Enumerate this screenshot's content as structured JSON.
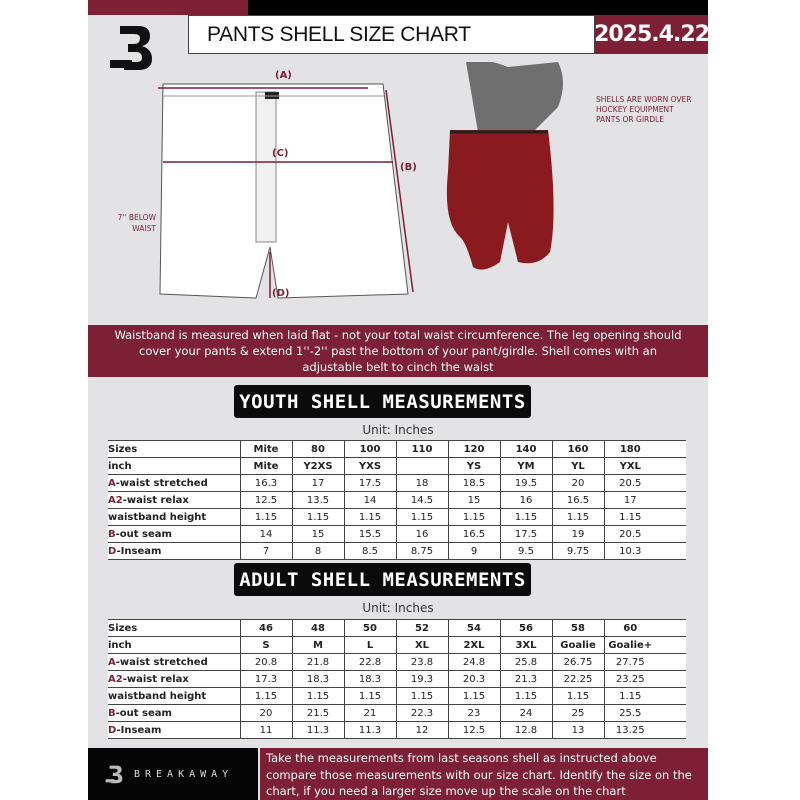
{
  "header": {
    "title": "PANTS SHELL SIZE CHART",
    "date": "2025.4.22"
  },
  "diagram": {
    "label_a": "(A)",
    "label_b": "(B)",
    "label_c": "(C)",
    "label_d": "(D)",
    "below_waist": "7'' BELOW WAIST",
    "worn_note": "SHELLS ARE WORN OVER HOCKEY EQUIPMENT PANTS OR GIRDLE"
  },
  "banner": "Waistband is measured when laid flat - not your total waist circumference. The leg opening should cover your pants & extend 1''-2'' past the bottom of your pant/girdle. Shell comes with an adjustable belt to cinch the waist",
  "youth": {
    "heading": "YOUTH SHELL MEASUREMENTS",
    "unit": "Unit: Inches",
    "rows": [
      {
        "pre": "",
        "label": "Sizes",
        "cells": [
          "Mite",
          "80",
          "100",
          "110",
          "120",
          "140",
          "160",
          "180"
        ]
      },
      {
        "pre": "",
        "label": "inch",
        "cells": [
          "Mite",
          "Y2XS",
          "YXS",
          "",
          "YS",
          "YM",
          "YL",
          "YXL"
        ]
      },
      {
        "pre": "A",
        "label": "-waist stretched",
        "cells": [
          "16.3",
          "17",
          "17.5",
          "18",
          "18.5",
          "19.5",
          "20",
          "20.5"
        ]
      },
      {
        "pre": "A2",
        "label": "-waist relax",
        "cells": [
          "12.5",
          "13.5",
          "14",
          "14.5",
          "15",
          "16",
          "16.5",
          "17"
        ]
      },
      {
        "pre": "",
        "label": "waistband height",
        "cells": [
          "1.15",
          "1.15",
          "1.15",
          "1.15",
          "1.15",
          "1.15",
          "1.15",
          "1.15"
        ]
      },
      {
        "pre": "B",
        "label": "-out seam",
        "cells": [
          "14",
          "15",
          "15.5",
          "16",
          "16.5",
          "17.5",
          "19",
          "20.5"
        ]
      },
      {
        "pre": "D",
        "label": "-Inseam",
        "cells": [
          "7",
          "8",
          "8.5",
          "8.75",
          "9",
          "9.5",
          "9.75",
          "10.3"
        ]
      }
    ]
  },
  "adult": {
    "heading": "ADULT SHELL MEASUREMENTS",
    "unit": "Unit: Inches",
    "rows": [
      {
        "pre": "",
        "label": "Sizes",
        "cells": [
          "46",
          "48",
          "50",
          "52",
          "54",
          "56",
          "58",
          "60"
        ]
      },
      {
        "pre": "",
        "label": "inch",
        "cells": [
          "S",
          "M",
          "L",
          "XL",
          "2XL",
          "3XL",
          "Goalie",
          "Goalie+"
        ]
      },
      {
        "pre": "A",
        "label": "-waist stretched",
        "cells": [
          "20.8",
          "21.8",
          "22.8",
          "23.8",
          "24.8",
          "25.8",
          "26.75",
          "27.75"
        ]
      },
      {
        "pre": "A2",
        "label": "-waist relax",
        "cells": [
          "17.3",
          "18.3",
          "18.3",
          "19.3",
          "20.3",
          "21.3",
          "22.25",
          "23.25"
        ]
      },
      {
        "pre": "",
        "label": "waistband height",
        "cells": [
          "1.15",
          "1.15",
          "1.15",
          "1.15",
          "1.15",
          "1.15",
          "1.15",
          "1.15"
        ]
      },
      {
        "pre": "B",
        "label": "-out seam",
        "cells": [
          "20",
          "21.5",
          "21",
          "22.3",
          "23",
          "24",
          "25",
          "25.5"
        ]
      },
      {
        "pre": "D",
        "label": "-Inseam",
        "cells": [
          "11",
          "11.3",
          "11.3",
          "12",
          "12.5",
          "12.8",
          "13",
          "13.25"
        ]
      }
    ]
  },
  "footer": {
    "brand": "BREAKAWAY",
    "note": "Take the measurements from last seasons shell as instructed above compare those measurements  with our size chart. Identify the size on the chart, if you need a larger size move up the scale on the chart"
  },
  "colors": {
    "brand": "#7d1f35",
    "dark": "#0b0b0b",
    "background": "#e3e3e5"
  }
}
